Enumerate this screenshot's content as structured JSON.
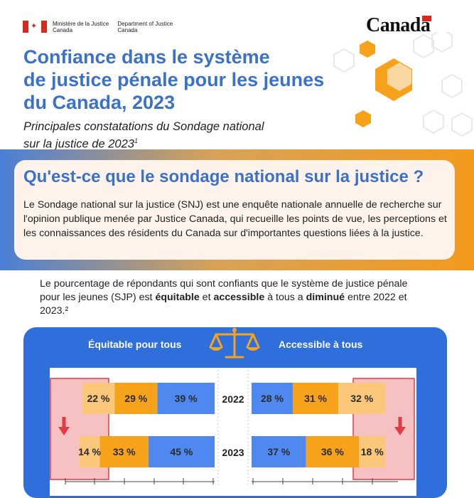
{
  "header": {
    "ministry_fr": [
      "Ministère de la Justice",
      "Canada"
    ],
    "ministry_en": [
      "Department of Justice",
      "Canada"
    ],
    "wordmark": "Canada"
  },
  "title": [
    "Confiance dans le système",
    "de justice pénale pour les jeunes",
    "du Canada, 2023"
  ],
  "subtitle": [
    "Principales constatations du Sondage national",
    "sur la justice de 2023"
  ],
  "subtitle_sup": "1",
  "survey_box": {
    "heading": "Qu'est-ce que le sondage national sur la justice ?",
    "body": "Le Sondage national sur la justice (SNJ) est une enquête nationale annuelle de recherche sur l'opinion publique menée par Justice Canada, qui recueille les points de vue, les perceptions et les connaissances des résidents du Canada sur d'importantes questions liées à la justice."
  },
  "lead": {
    "t1": "Le pourcentage de répondants qui sont confiants que le système de justice pénale pour les jeunes (SJP) est ",
    "b1": "équitable",
    "t2": " et ",
    "b2": "accessible",
    "t3": " à tous a ",
    "b3": "diminué",
    "t4": " entre 2022 et 2023.²"
  },
  "colors": {
    "blue": "#4f88ee",
    "orange": "#f7a21b",
    "light": "#fbc77a",
    "panel": "#2e6fdc",
    "highlight": "#f6c1c3",
    "highlight_border": "#e23b44"
  },
  "chart_data": [
    {
      "type": "bar",
      "title": "Équitable pour tous",
      "categories": [
        "2022",
        "2023"
      ],
      "series": [
        {
          "values": [
            22,
            14
          ]
        },
        {
          "values": [
            29,
            33
          ]
        },
        {
          "values": [
            39,
            45
          ]
        }
      ],
      "labels": [
        [
          "22 %",
          "29 %",
          "39 %"
        ],
        [
          "14 %",
          "33 %",
          "45 %"
        ]
      ]
    },
    {
      "type": "bar",
      "title": "Accessible à tous",
      "categories": [
        "2022",
        "2023"
      ],
      "series": [
        {
          "values": [
            28,
            37
          ]
        },
        {
          "values": [
            31,
            36
          ]
        },
        {
          "values": [
            32,
            18
          ]
        }
      ],
      "labels": [
        [
          "28 %",
          "31 %",
          "32 %"
        ],
        [
          "37 %",
          "36 %",
          "18 %"
        ]
      ]
    }
  ]
}
